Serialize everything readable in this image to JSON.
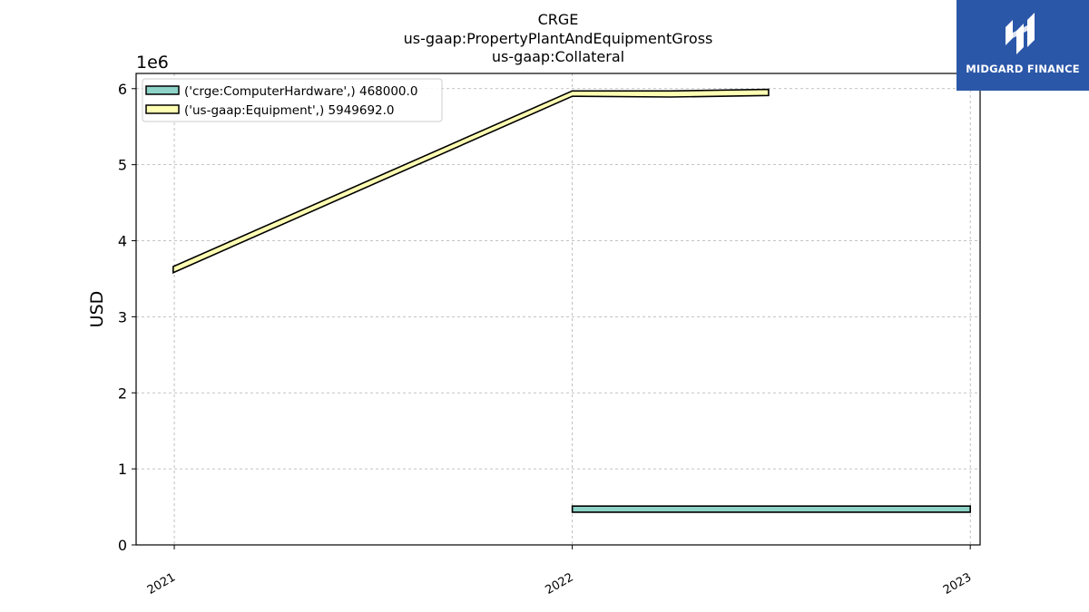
{
  "brand": {
    "name": "MIDGARD FINANCE",
    "bg_color": "#2b57a8"
  },
  "chart_data": {
    "type": "area",
    "title_lines": [
      "CRGE",
      "us-gaap:PropertyPlantAndEquipmentGross",
      "us-gaap:Collateral"
    ],
    "xlabel": "",
    "ylabel": "USD",
    "y_offset_text": "1e6",
    "y_scale": 1000000,
    "ylim": [
      0,
      6200000
    ],
    "yticks": [
      0,
      1000000,
      2000000,
      3000000,
      4000000,
      5000000,
      6000000
    ],
    "ytick_labels": [
      "0",
      "1",
      "2",
      "3",
      "4",
      "5",
      "6"
    ],
    "x_axis": "date",
    "xlim": [
      "2020-11-27",
      "2023-01-10"
    ],
    "xticks": [
      "2021-01-01",
      "2022-01-01",
      "2023-01-01"
    ],
    "xtick_labels": [
      "2021",
      "2022",
      "2023"
    ],
    "grid": true,
    "legend_position": "top-left",
    "series": [
      {
        "name": "('crge:ComputerHardware',) 468000.0",
        "color": "#8dd3c7",
        "points": [
          {
            "x": "2022-01-01",
            "y0": 430000,
            "y1": 510000
          },
          {
            "x": "2023-01-01",
            "y0": 430000,
            "y1": 510000
          }
        ]
      },
      {
        "name": "('us-gaap:Equipment',) 5949692.0",
        "color": "#ffffb3",
        "points": [
          {
            "x": "2020-12-31",
            "y0": 3580000,
            "y1": 3660000
          },
          {
            "x": "2022-01-01",
            "y0": 5900000,
            "y1": 5970000
          },
          {
            "x": "2022-04-01",
            "y0": 5890000,
            "y1": 5970000
          },
          {
            "x": "2022-06-30",
            "y0": 5910000,
            "y1": 5990000
          }
        ]
      }
    ]
  }
}
